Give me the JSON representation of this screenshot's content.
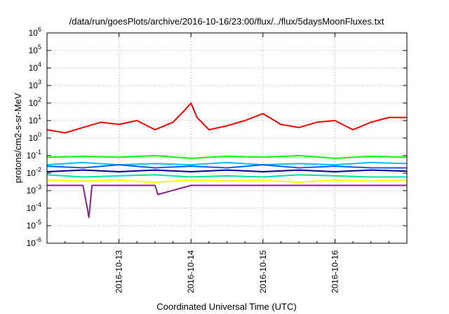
{
  "chart_data": {
    "type": "line",
    "title": "/data/run/goesPlots/archive/2016-10-16/23:00/flux/../flux/5daysMoonFluxes.txt",
    "xlabel": "Coordinated Universal Time (UTC)",
    "ylabel": "protons/cm2-s-sr-MeV",
    "y_scale": "log",
    "ylim": [
      1e-06,
      1000000.0
    ],
    "xlim": [
      "2016-10-12T00:00",
      "2016-10-17T00:00"
    ],
    "grid": true,
    "legend": "none",
    "y_ticks": [
      {
        "base": "10",
        "exp": "6"
      },
      {
        "base": "10",
        "exp": "5"
      },
      {
        "base": "10",
        "exp": "4"
      },
      {
        "base": "10",
        "exp": "3"
      },
      {
        "base": "10",
        "exp": "2"
      },
      {
        "base": "10",
        "exp": "1"
      },
      {
        "base": "10",
        "exp": "0"
      },
      {
        "base": "10",
        "exp": "-1"
      },
      {
        "base": "10",
        "exp": "-2"
      },
      {
        "base": "10",
        "exp": "-3"
      },
      {
        "base": "10",
        "exp": "-4"
      },
      {
        "base": "10",
        "exp": "-5"
      },
      {
        "base": "10",
        "exp": "-6"
      }
    ],
    "x_ticks": [
      "2016-10-13",
      "2016-10-14",
      "2016-10-15",
      "2016-10-16"
    ],
    "series": [
      {
        "color": "#ff0000",
        "x": [
          "2016-10-12T00:00",
          "2016-10-12T06:00",
          "2016-10-12T12:00",
          "2016-10-12T18:00",
          "2016-10-13T00:00",
          "2016-10-13T06:00",
          "2016-10-13T12:00",
          "2016-10-13T18:00",
          "2016-10-13T22:00",
          "2016-10-14T00:00",
          "2016-10-14T02:00",
          "2016-10-14T06:00",
          "2016-10-14T12:00",
          "2016-10-14T18:00",
          "2016-10-15T00:00",
          "2016-10-15T06:00",
          "2016-10-15T12:00",
          "2016-10-15T18:00",
          "2016-10-16T00:00",
          "2016-10-16T06:00",
          "2016-10-16T12:00",
          "2016-10-16T18:00",
          "2016-10-17T00:00"
        ],
        "y": [
          3,
          2,
          4,
          8,
          6,
          10,
          3,
          8,
          40,
          100,
          15,
          3,
          5,
          10,
          25,
          6,
          4,
          8,
          10,
          3,
          8,
          15,
          15
        ]
      },
      {
        "color": "#00ff00",
        "x": [
          "2016-10-12T00:00",
          "2016-10-12T12:00",
          "2016-10-13T00:00",
          "2016-10-13T12:00",
          "2016-10-14T00:00",
          "2016-10-14T12:00",
          "2016-10-15T00:00",
          "2016-10-15T12:00",
          "2016-10-16T00:00",
          "2016-10-16T12:00",
          "2016-10-17T00:00"
        ],
        "y": [
          0.08,
          0.09,
          0.08,
          0.1,
          0.07,
          0.09,
          0.08,
          0.1,
          0.07,
          0.09,
          0.08
        ]
      },
      {
        "color": "#00bfff",
        "x": [
          "2016-10-12T00:00",
          "2016-10-12T12:00",
          "2016-10-13T00:00",
          "2016-10-13T12:00",
          "2016-10-14T00:00",
          "2016-10-14T12:00",
          "2016-10-15T00:00",
          "2016-10-15T12:00",
          "2016-10-16T00:00",
          "2016-10-16T12:00",
          "2016-10-17T00:00"
        ],
        "y": [
          0.03,
          0.04,
          0.03,
          0.035,
          0.03,
          0.04,
          0.03,
          0.035,
          0.03,
          0.04,
          0.035
        ]
      },
      {
        "color": "#0060ff",
        "x": [
          "2016-10-12T00:00",
          "2016-10-12T12:00",
          "2016-10-13T00:00",
          "2016-10-13T12:00",
          "2016-10-14T00:00",
          "2016-10-14T12:00",
          "2016-10-15T00:00",
          "2016-10-15T12:00",
          "2016-10-16T00:00",
          "2016-10-16T12:00",
          "2016-10-17T00:00"
        ],
        "y": [
          0.025,
          0.02,
          0.03,
          0.02,
          0.025,
          0.02,
          0.03,
          0.02,
          0.025,
          0.02,
          0.02
        ]
      },
      {
        "color": "#00008b",
        "x": [
          "2016-10-12T00:00",
          "2016-10-12T12:00",
          "2016-10-13T00:00",
          "2016-10-13T12:00",
          "2016-10-14T00:00",
          "2016-10-14T12:00",
          "2016-10-15T00:00",
          "2016-10-15T12:00",
          "2016-10-16T00:00",
          "2016-10-16T12:00",
          "2016-10-17T00:00"
        ],
        "y": [
          0.012,
          0.015,
          0.012,
          0.015,
          0.012,
          0.015,
          0.012,
          0.015,
          0.012,
          0.015,
          0.013
        ]
      },
      {
        "color": "#00e0a0",
        "x": [
          "2016-10-12T00:00",
          "2016-10-12T12:00",
          "2016-10-13T00:00",
          "2016-10-13T12:00",
          "2016-10-14T00:00",
          "2016-10-14T12:00",
          "2016-10-15T00:00",
          "2016-10-15T12:00",
          "2016-10-16T00:00",
          "2016-10-16T12:00",
          "2016-10-17T00:00"
        ],
        "y": [
          0.008,
          0.006,
          0.007,
          0.008,
          0.006,
          0.007,
          0.006,
          0.008,
          0.007,
          0.006,
          0.006
        ]
      },
      {
        "color": "#ffff00",
        "x": [
          "2016-10-12T00:00",
          "2016-10-12T12:00",
          "2016-10-13T00:00",
          "2016-10-13T12:00",
          "2016-10-14T00:00",
          "2016-10-14T12:00",
          "2016-10-15T00:00",
          "2016-10-15T12:00",
          "2016-10-16T00:00",
          "2016-10-16T12:00",
          "2016-10-17T00:00"
        ],
        "y": [
          0.004,
          0.0035,
          0.004,
          0.003,
          0.004,
          0.0035,
          0.004,
          0.003,
          0.004,
          0.0035,
          0.004
        ]
      },
      {
        "color": "#882288",
        "x": [
          "2016-10-12T00:00",
          "2016-10-12T12:00",
          "2016-10-12T14:00",
          "2016-10-12T15:00",
          "2016-10-12T16:00",
          "2016-10-13T00:00",
          "2016-10-13T12:00",
          "2016-10-13T13:00",
          "2016-10-14T00:00",
          "2016-10-14T12:00",
          "2016-10-15T00:00",
          "2016-10-15T12:00",
          "2016-10-16T00:00",
          "2016-10-16T12:00",
          "2016-10-17T00:00"
        ],
        "y": [
          0.002,
          0.002,
          3e-05,
          0.002,
          0.002,
          0.002,
          0.002,
          0.0006,
          0.002,
          0.002,
          0.002,
          0.002,
          0.002,
          0.002,
          0.002
        ]
      }
    ]
  }
}
